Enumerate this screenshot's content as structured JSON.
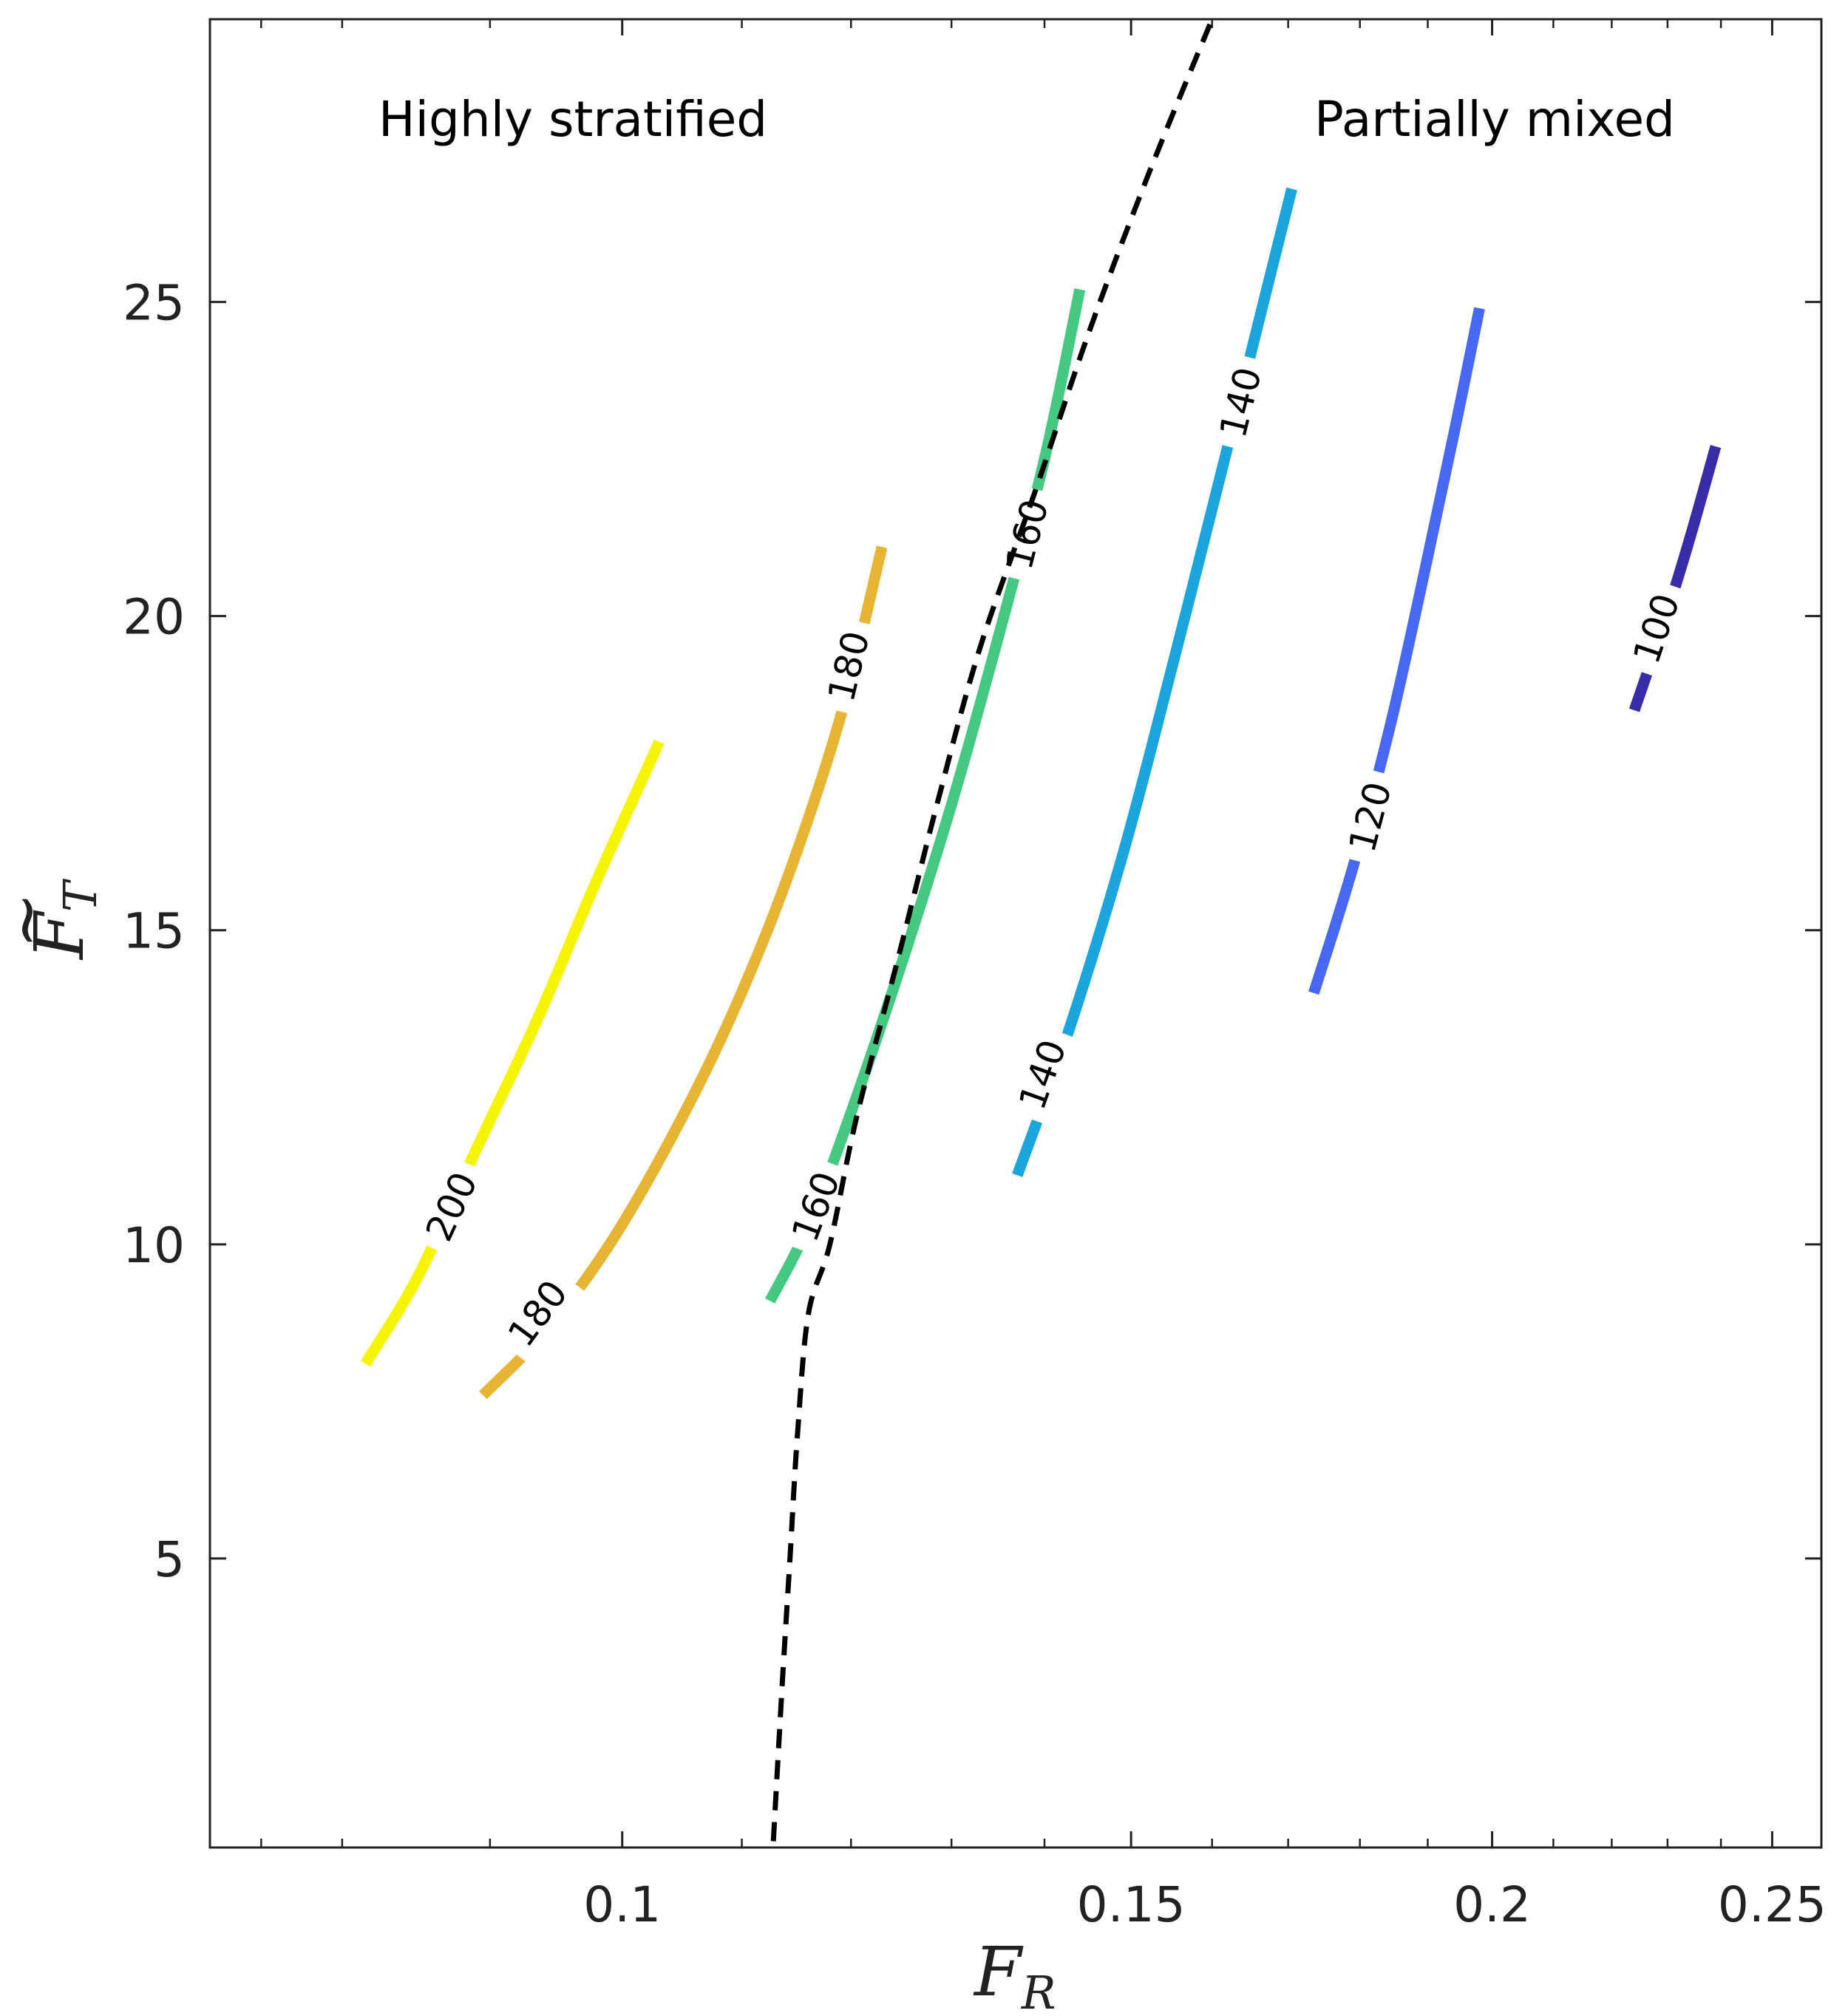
{
  "chart_data": {
    "type": "line",
    "title": "",
    "xlabel": "F",
    "xlabel_sub": "R",
    "ylabel": "F",
    "ylabel_sub": "T",
    "ylabel_accent": "~",
    "xscale": "log",
    "xlim": [
      0.072,
      0.26
    ],
    "ylim": [
      0.4,
      29.5
    ],
    "xticks": [
      {
        "value": 0.1,
        "label": "0.1"
      },
      {
        "value": 0.15,
        "label": "0.15"
      },
      {
        "value": 0.2,
        "label": "0.2"
      },
      {
        "value": 0.25,
        "label": "0.25"
      }
    ],
    "xminorticks": [
      0.075,
      0.08,
      0.09,
      0.11,
      0.12,
      0.13,
      0.14,
      0.16,
      0.17,
      0.18,
      0.19,
      0.21,
      0.22,
      0.23,
      0.24
    ],
    "yticks": [
      {
        "value": 5,
        "label": "5"
      },
      {
        "value": 10,
        "label": "10"
      },
      {
        "value": 15,
        "label": "15"
      },
      {
        "value": 20,
        "label": "20"
      },
      {
        "value": 25,
        "label": "25"
      }
    ],
    "annotations": [
      {
        "text": "Highly stratified",
        "anchor": "upper-left"
      },
      {
        "text": "Partially mixed",
        "anchor": "upper-right"
      }
    ],
    "boundary": {
      "name": "stratified-mixed boundary",
      "style": "dashed",
      "color": "#000000",
      "x": [
        0.1128,
        0.1136,
        0.1143,
        0.115,
        0.116,
        0.118,
        0.1205,
        0.1245,
        0.1285,
        0.133,
        0.139,
        0.145,
        0.152,
        0.16
      ],
      "y": [
        0.5,
        3.0,
        5.0,
        7.0,
        8.9,
        10.0,
        12.0,
        14.5,
        17.0,
        19.5,
        22.0,
        24.5,
        27.0,
        29.5
      ]
    },
    "series": [
      {
        "name": "200",
        "color": "#f5f500",
        "x": [
          0.0815,
          0.085,
          0.089,
          0.0935,
          0.098,
          0.103
        ],
        "y": [
          8.1,
          9.5,
          11.5,
          13.6,
          15.8,
          18.0
        ],
        "labels": [
          {
            "text": "200",
            "x": 0.0873,
            "y": 10.6
          }
        ]
      },
      {
        "name": "180",
        "color": "#e6b533",
        "x": [
          0.0895,
          0.094,
          0.099,
          0.104,
          0.109,
          0.114,
          0.119,
          0.123
        ],
        "y": [
          7.6,
          8.6,
          10.0,
          11.7,
          13.6,
          15.8,
          18.4,
          21.1
        ],
        "labels": [
          {
            "text": "180",
            "x": 0.0935,
            "y": 8.9
          },
          {
            "text": "180",
            "x": 0.1198,
            "y": 19.2
          }
        ]
      },
      {
        "name": "160",
        "color": "#45c881",
        "x": [
          0.1125,
          0.116,
          0.12,
          0.125,
          0.13,
          0.135,
          0.14,
          0.144
        ],
        "y": [
          9.1,
          10.3,
          12.1,
          14.5,
          17.0,
          19.7,
          22.5,
          25.2
        ],
        "labels": [
          {
            "text": "160",
            "x": 0.1167,
            "y": 10.6
          },
          {
            "text": "160",
            "x": 0.1381,
            "y": 21.3
          }
        ]
      },
      {
        "name": "140",
        "color": "#1aa6dc",
        "x": [
          0.137,
          0.1425,
          0.149,
          0.155,
          0.161,
          0.1665,
          0.1705
        ],
        "y": [
          11.1,
          13.3,
          16.2,
          19.2,
          22.2,
          24.9,
          26.8
        ],
        "labels": [
          {
            "text": "140",
            "x": 0.1398,
            "y": 12.7
          },
          {
            "text": "140",
            "x": 0.1637,
            "y": 23.4
          }
        ]
      },
      {
        "name": "120",
        "color": "#4668f2",
        "x": [
          0.1735,
          0.179,
          0.1845,
          0.1895,
          0.194,
          0.198
        ],
        "y": [
          14.0,
          16.0,
          18.3,
          20.7,
          22.9,
          24.9
        ],
        "labels": [
          {
            "text": "120",
            "x": 0.1815,
            "y": 16.8
          }
        ]
      },
      {
        "name": "100",
        "color": "#3a2ba8",
        "x": [
          0.224,
          0.229,
          0.234,
          0.239
        ],
        "y": [
          18.5,
          19.8,
          21.2,
          22.7
        ],
        "labels": [
          {
            "text": "100",
            "x": 0.228,
            "y": 19.8
          }
        ]
      }
    ]
  }
}
